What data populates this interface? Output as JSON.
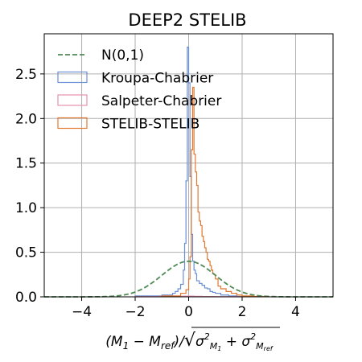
{
  "chart_data": {
    "type": "histogram",
    "title": "DEEP2 STELIB",
    "xlabel": "(M_1 - M_ref)/sqrt(σ²_M1 + σ²_Mref)",
    "xlabel_parts": {
      "lhs": "(M",
      "sub1": "1",
      "mid": " − M",
      "sub_ref": "ref",
      "close": ")/",
      "sigma": "σ",
      "M": "M",
      "sq": "2",
      "plus": " + "
    },
    "ylabel": "",
    "xlim": [
      -5.4,
      5.4
    ],
    "ylim": [
      0,
      2.95
    ],
    "x_ticks": [
      -4,
      -2,
      0,
      2,
      4
    ],
    "x_tick_labels": [
      "−4",
      "−2",
      "0",
      "2",
      "4"
    ],
    "y_ticks": [
      0.0,
      0.5,
      1.0,
      1.5,
      2.0,
      2.5
    ],
    "y_tick_labels": [
      "0.0",
      "0.5",
      "1.0",
      "1.5",
      "2.0",
      "2.5"
    ],
    "grid": true,
    "legend_position": "top-left",
    "normal_curve": {
      "name": "N(0,1)",
      "color": "#4f8a55",
      "mean": 0,
      "std": 1,
      "style": "dashed"
    },
    "series": [
      {
        "name": "Kroupa-Chabrier",
        "color": "#6a8fd4",
        "bin_edges": [
          -2.0,
          -1.0,
          -0.6,
          -0.5,
          -0.4,
          -0.3,
          -0.2,
          -0.15,
          -0.1,
          -0.05,
          0.0,
          0.05,
          0.1,
          0.15,
          0.2,
          0.25,
          0.3,
          0.4,
          0.5,
          0.6,
          0.7,
          0.8,
          0.9,
          1.0,
          1.2,
          1.5,
          1.8,
          2.2,
          3.0
        ],
        "values": [
          0.01,
          0.02,
          0.04,
          0.06,
          0.09,
          0.14,
          0.3,
          0.6,
          1.3,
          2.8,
          2.4,
          1.35,
          0.7,
          0.4,
          0.3,
          0.26,
          0.18,
          0.15,
          0.13,
          0.1,
          0.09,
          0.06,
          0.05,
          0.04,
          0.02,
          0.01,
          0.005,
          0.002
        ]
      },
      {
        "name": "Salpeter-Chabrier",
        "color": "#e68fb0",
        "bin_edges": [
          -2.0,
          -1.0,
          -0.5,
          -0.2,
          0.0,
          0.2,
          0.5,
          1.0,
          2.0,
          3.0
        ],
        "values": [
          0.002,
          0.004,
          0.006,
          0.008,
          0.008,
          0.006,
          0.004,
          0.002,
          0.001
        ]
      },
      {
        "name": "STELIB-STELIB",
        "color": "#e07830",
        "bin_edges": [
          -1.0,
          -0.3,
          -0.1,
          0.0,
          0.05,
          0.1,
          0.15,
          0.2,
          0.25,
          0.3,
          0.35,
          0.4,
          0.45,
          0.5,
          0.55,
          0.6,
          0.65,
          0.7,
          0.75,
          0.8,
          0.85,
          0.9,
          0.95,
          1.0,
          1.1,
          1.2,
          1.4,
          1.6,
          1.8,
          2.0,
          2.4,
          3.0
        ],
        "values": [
          0.01,
          0.04,
          0.08,
          0.2,
          0.45,
          1.65,
          2.35,
          1.6,
          1.4,
          1.25,
          0.95,
          0.85,
          0.8,
          0.68,
          0.62,
          0.55,
          0.5,
          0.42,
          0.4,
          0.35,
          0.3,
          0.26,
          0.25,
          0.2,
          0.12,
          0.09,
          0.06,
          0.04,
          0.02,
          0.01,
          0.005
        ]
      }
    ]
  }
}
